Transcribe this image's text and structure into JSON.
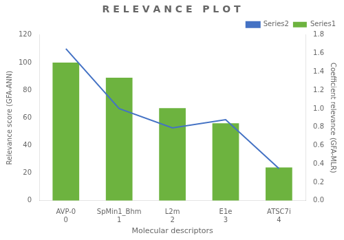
{
  "chart_data": {
    "type": "bar",
    "title": "R E L E V A N C E   P L O T",
    "categories": [
      [
        "AVP-0",
        "0"
      ],
      [
        "SpMin1_Bhm",
        "1"
      ],
      [
        "L2m",
        "2"
      ],
      [
        "E1e",
        "3"
      ],
      [
        "ATSC7i",
        "4"
      ]
    ],
    "xlabel": "Molecular descriptors",
    "ylabel": "Relevance score (GFA-ANN)",
    "y2label": "Coefficient relevance (GFA-MLR)",
    "series": [
      {
        "name": "Series1",
        "type": "bar",
        "color": "#6db33f",
        "values": [
          100,
          89,
          67,
          56,
          24
        ]
      },
      {
        "name": "Series2",
        "type": "line",
        "color": "#4472c4",
        "marker": "none",
        "axis": "y2",
        "values": [
          1.65,
          1.0,
          0.79,
          0.88,
          0.35
        ]
      }
    ],
    "ylim": [
      0,
      120
    ],
    "yticks": [
      0,
      20,
      40,
      60,
      80,
      100,
      120
    ],
    "y2lim": [
      0,
      1.8
    ],
    "y2ticks": [
      {
        "value": 0,
        "label": "0.0"
      },
      0.2,
      0.4,
      0.6,
      0.8,
      {
        "value": 1.0,
        "label": "1.0"
      },
      1.2,
      1.4,
      1.6,
      1.8
    ],
    "grid": false,
    "legend": "upper right"
  }
}
